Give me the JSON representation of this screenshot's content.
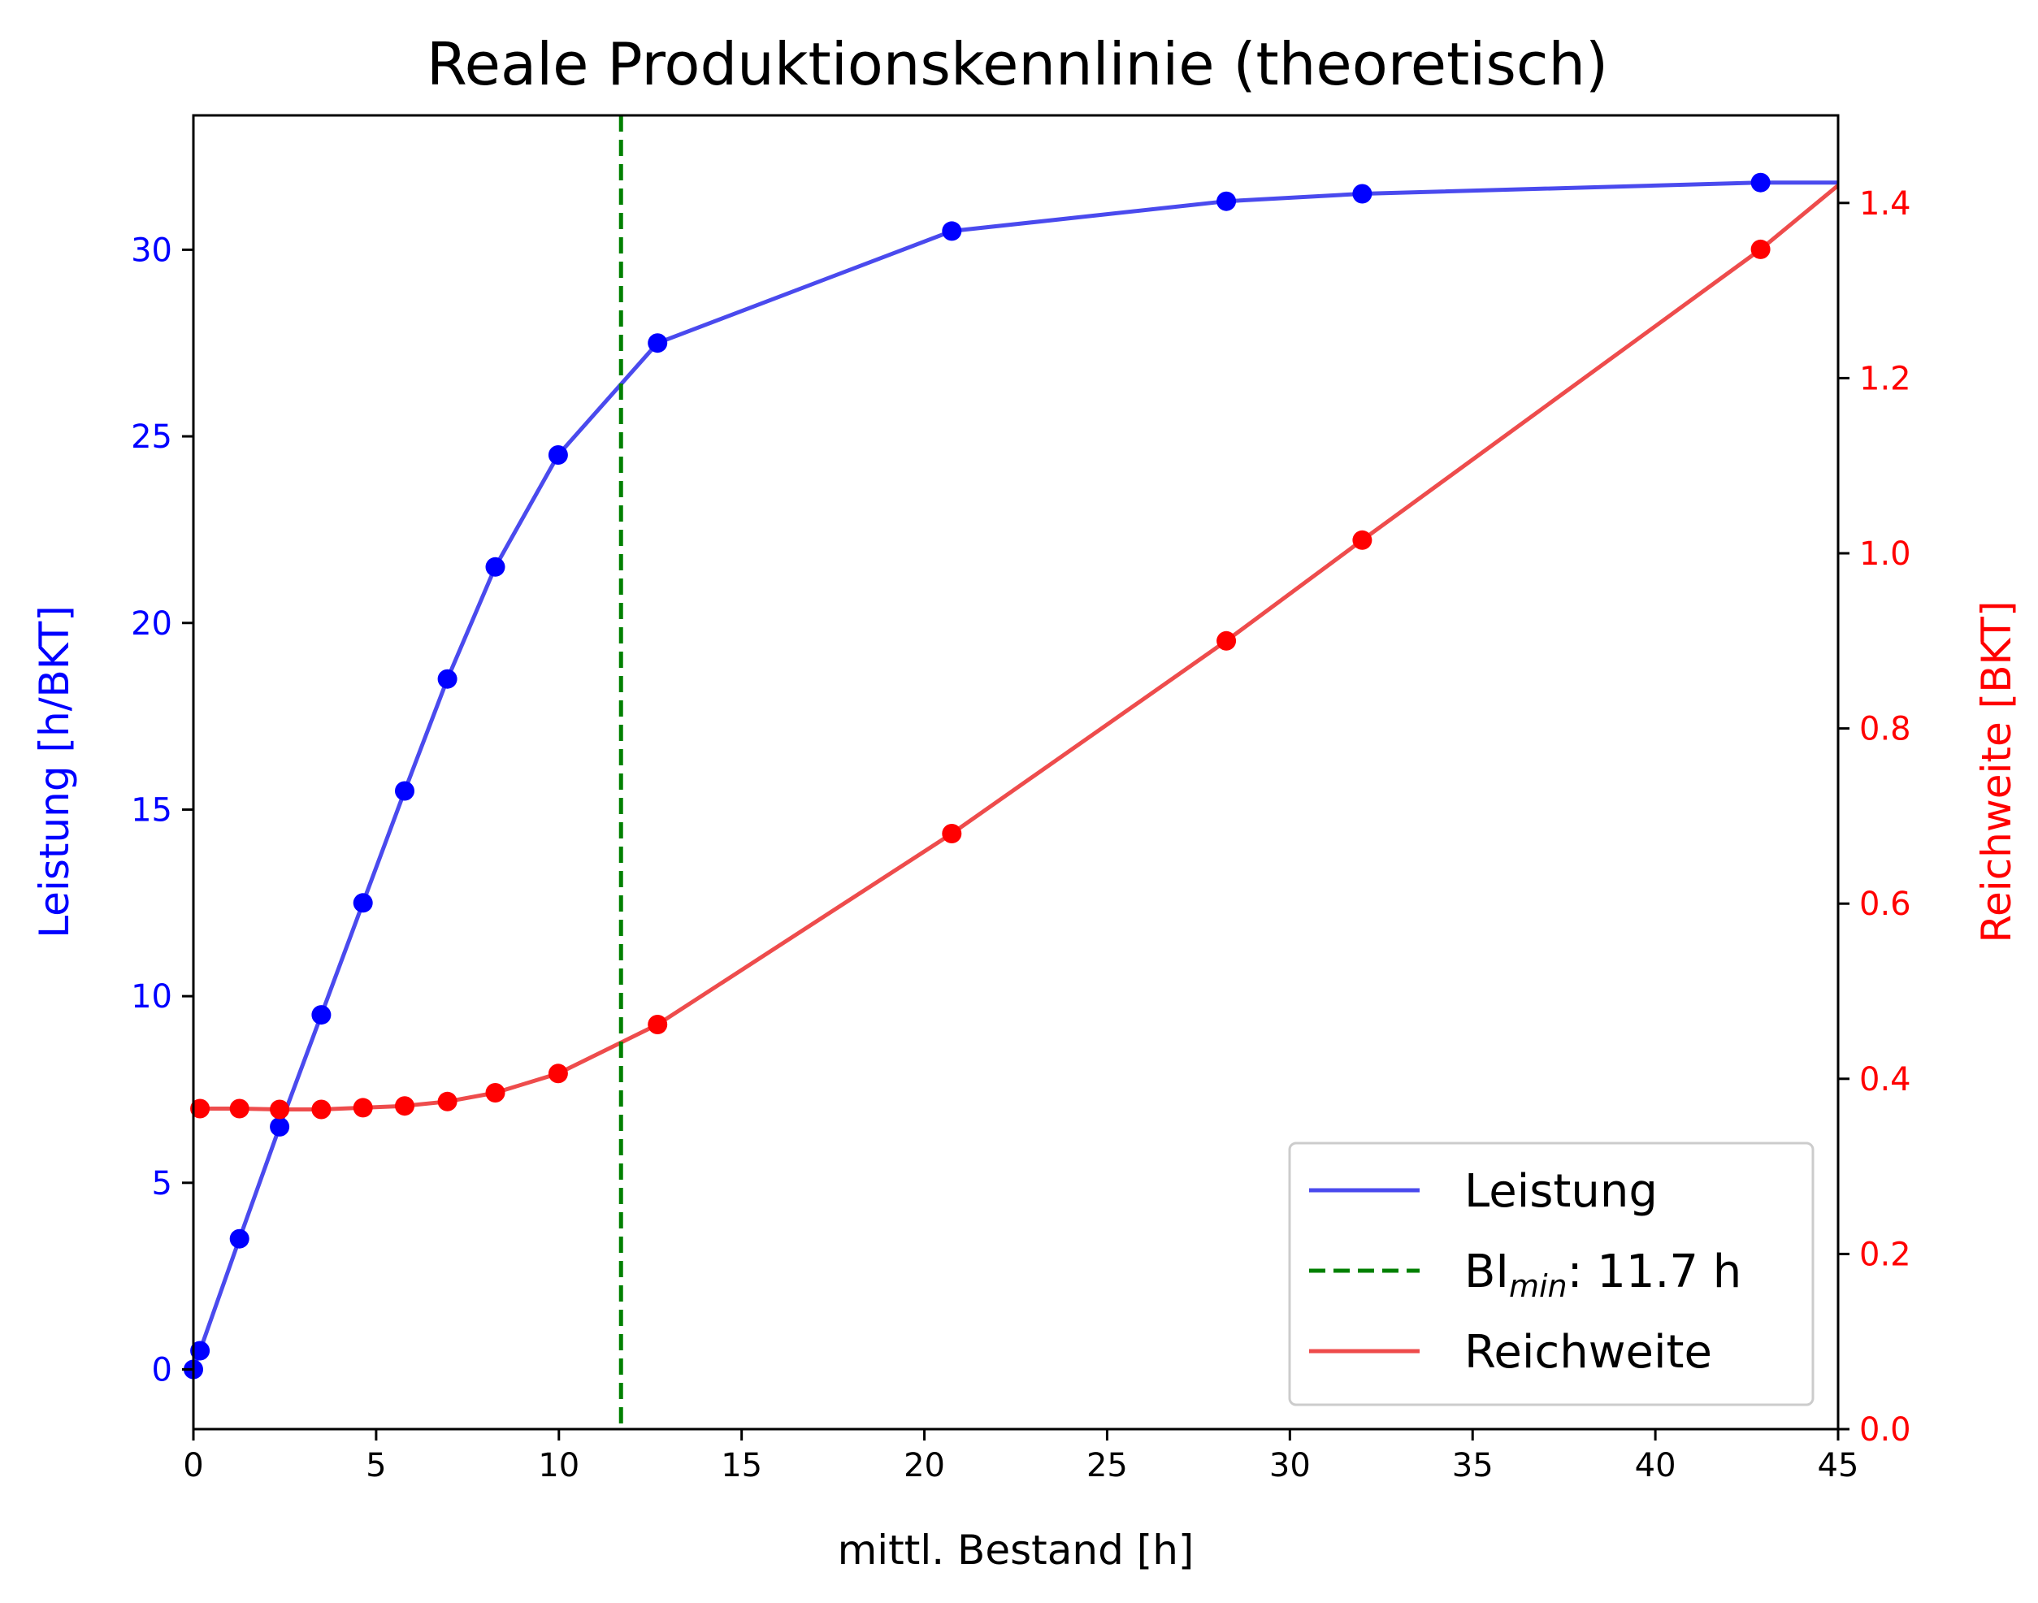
{
  "chart_data": {
    "type": "line",
    "title": "Reale Produktionskennlinie (theoretisch)",
    "xlabel": "mittl. Bestand [h]",
    "ylabel_left": "Leistung [h/BKT]",
    "ylabel_right": "Reichweite [BKT]",
    "xlim": [
      0,
      45
    ],
    "ylim_left": [
      -1.6,
      33.6
    ],
    "ylim_right": [
      0,
      1.5
    ],
    "x_ticks": [
      "0",
      "5",
      "10",
      "15",
      "20",
      "25",
      "30",
      "35",
      "40",
      "45"
    ],
    "y_left_ticks": [
      "0",
      "5",
      "10",
      "15",
      "20",
      "25",
      "30"
    ],
    "y_right_ticks": [
      "0.0",
      "0.2",
      "0.4",
      "0.6",
      "0.8",
      "1.0",
      "1.2",
      "1.4"
    ],
    "grid": false,
    "legend_position": "lower right",
    "series": [
      {
        "name": "Leistung",
        "axis": "left",
        "color": "#0000ff",
        "line_color": "#4a4aee",
        "x": [
          0,
          0.18,
          1.26,
          2.36,
          3.5,
          4.64,
          5.78,
          6.95,
          8.26,
          9.98,
          12.7,
          20.75,
          28.26,
          31.98,
          42.88,
          45
        ],
        "y": [
          0,
          0.5,
          3.5,
          6.5,
          9.5,
          12.5,
          15.5,
          18.5,
          21.5,
          24.5,
          27.5,
          30.5,
          31.3,
          31.5,
          31.8,
          31.8
        ],
        "markers": [
          true,
          true,
          true,
          true,
          true,
          true,
          true,
          true,
          true,
          true,
          true,
          true,
          true,
          true,
          true,
          false
        ]
      },
      {
        "name": "Reichweite",
        "axis": "right",
        "color": "#ff0000",
        "line_color": "#ee4c4c",
        "x": [
          0.18,
          1.26,
          2.36,
          3.5,
          4.64,
          5.78,
          6.95,
          8.26,
          9.98,
          12.7,
          20.75,
          28.26,
          31.98,
          42.88,
          45
        ],
        "y": [
          0.366,
          0.366,
          0.365,
          0.365,
          0.367,
          0.369,
          0.374,
          0.384,
          0.406,
          0.462,
          0.68,
          0.9,
          1.015,
          1.347,
          1.42
        ],
        "markers": [
          true,
          true,
          true,
          true,
          true,
          true,
          true,
          true,
          true,
          true,
          true,
          true,
          true,
          true,
          false
        ]
      }
    ],
    "vline": {
      "name": "BI_min: 11.7 h",
      "x": 11.7,
      "color": "#008000",
      "style": "dashed"
    },
    "legend": {
      "entries": [
        {
          "label": "Leistung",
          "color": "#4a4aee",
          "style": "solid"
        },
        {
          "label_main": "BI",
          "label_sub": "min",
          "label_rest": ": 11.7 h",
          "color": "#008000",
          "style": "dashed"
        },
        {
          "label": "Reichweite",
          "color": "#ee4c4c",
          "style": "solid"
        }
      ]
    }
  }
}
